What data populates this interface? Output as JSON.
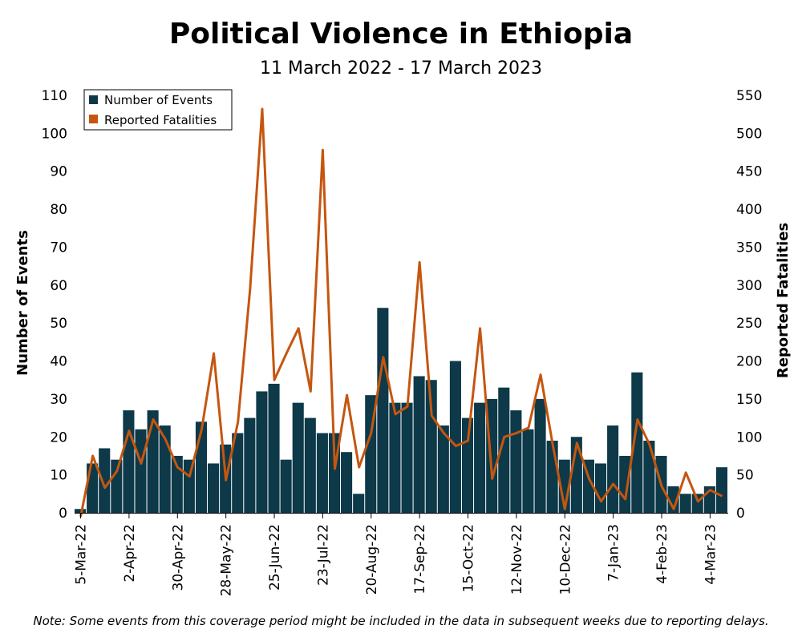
{
  "chart_data": {
    "type": "bar+line",
    "title": "Political Violence in Ethiopia",
    "subtitle": "11 March 2022 - 17 March 2023",
    "note": "Note: Some events from this coverage period might be included in the data in subsequent weeks due to reporting delays.",
    "ylabel_left": "Number of Events",
    "ylabel_right": "Reported Fatalities",
    "ylim_left": [
      0,
      110
    ],
    "ylim_right": [
      0,
      550
    ],
    "yticks_left": [
      0,
      10,
      20,
      30,
      40,
      50,
      60,
      70,
      80,
      90,
      100,
      110
    ],
    "yticks_right": [
      0,
      50,
      100,
      150,
      200,
      250,
      300,
      350,
      400,
      450,
      500,
      550
    ],
    "x_tick_labels": [
      "5-Mar-22",
      "2-Apr-22",
      "30-Apr-22",
      "28-May-22",
      "25-Jun-22",
      "23-Jul-22",
      "20-Aug-22",
      "17-Sep-22",
      "15-Oct-22",
      "12-Nov-22",
      "10-Dec-22",
      "7-Jan-23",
      "4-Feb-23",
      "4-Mar-23"
    ],
    "x_tick_week_index": [
      0,
      4,
      8,
      12,
      16,
      20,
      24,
      28,
      32,
      36,
      40,
      44,
      48,
      52
    ],
    "week_count": 54,
    "legend": {
      "placement": "top-left",
      "entries": [
        "Number of Events",
        "Reported Fatalities"
      ]
    },
    "series": [
      {
        "name": "Number of Events",
        "type": "bar",
        "color": "#0d3949",
        "values": [
          1,
          13,
          17,
          14,
          27,
          22,
          27,
          23,
          15,
          14,
          24,
          13,
          18,
          21,
          25,
          32,
          34,
          14,
          29,
          25,
          21,
          21,
          16,
          5,
          31,
          54,
          29,
          29,
          36,
          35,
          23,
          40,
          25,
          29,
          30,
          33,
          27,
          22,
          30,
          19,
          14,
          20,
          14,
          13,
          23,
          15,
          37,
          19,
          15,
          7,
          5,
          5,
          7,
          12
        ]
      },
      {
        "name": "Reported Fatalities",
        "type": "line",
        "color": "#c5560f",
        "values": [
          -5,
          75,
          33,
          55,
          108,
          65,
          123,
          97,
          60,
          48,
          110,
          210,
          43,
          120,
          295,
          532,
          175,
          210,
          243,
          160,
          478,
          58,
          155,
          60,
          105,
          205,
          130,
          140,
          330,
          128,
          105,
          88,
          95,
          243,
          45,
          100,
          105,
          112,
          182,
          90,
          5,
          92,
          45,
          15,
          38,
          18,
          123,
          90,
          35,
          5,
          53,
          15,
          30,
          22
        ]
      }
    ]
  }
}
